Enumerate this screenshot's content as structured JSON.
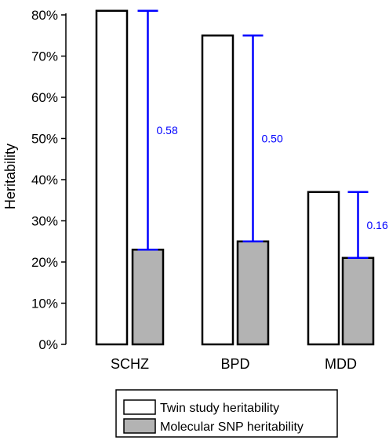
{
  "chart_data": {
    "type": "bar",
    "title": "",
    "xlabel": "",
    "ylabel": "Heritability",
    "ylim": [
      0,
      80
    ],
    "y_ticks": [
      "0%",
      "10%",
      "20%",
      "30%",
      "40%",
      "50%",
      "60%",
      "70%",
      "80%"
    ],
    "categories": [
      "SCHZ",
      "BPD",
      "MDD"
    ],
    "series": [
      {
        "name": "Twin study heritability",
        "values": [
          81,
          75,
          37
        ],
        "color": "#ffffff"
      },
      {
        "name": "Molecular SNP heritability",
        "values": [
          23,
          25,
          21
        ],
        "color": "#b3b3b3"
      }
    ],
    "gap_labels": [
      "0.58",
      "0.50",
      "0.16"
    ],
    "gap_color": "#0000ff",
    "grid": false,
    "legend_position": "bottom"
  }
}
